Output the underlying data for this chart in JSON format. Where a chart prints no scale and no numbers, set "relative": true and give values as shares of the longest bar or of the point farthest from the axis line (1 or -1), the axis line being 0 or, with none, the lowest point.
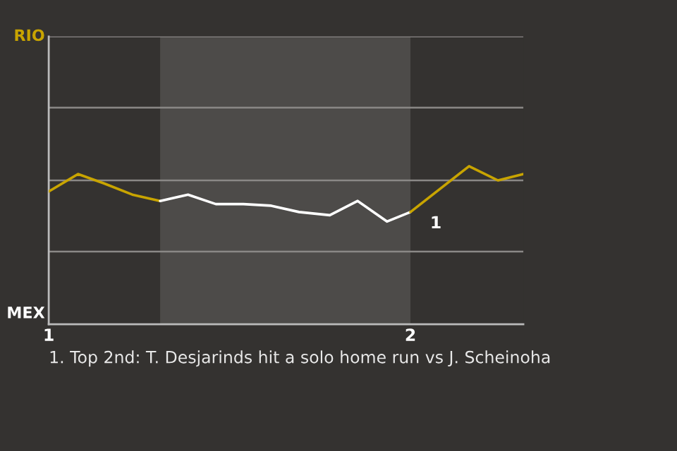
{
  "chart_data": {
    "type": "line",
    "relative": true,
    "series": [
      {
        "color": "#c8a400",
        "x": [
          1.0,
          1.081,
          1.154,
          1.231,
          1.308
        ],
        "values": [
          0.84,
          0.95,
          0.89,
          0.82,
          0.78
        ]
      },
      {
        "color": "#ffffff",
        "x": [
          1.308,
          1.385,
          1.462,
          1.538,
          1.615,
          1.692,
          1.777,
          1.854,
          1.935,
          2.0
        ],
        "values": [
          0.78,
          0.82,
          0.76,
          0.76,
          0.75,
          0.71,
          0.69,
          0.78,
          0.65,
          0.71
        ]
      },
      {
        "color": "#c8a400",
        "x": [
          2.0,
          2.162,
          2.242,
          2.312
        ],
        "values": [
          0.71,
          1,
          0.91,
          0.95
        ]
      }
    ],
    "xlim": [
      1,
      2.312
    ],
    "xticks": [
      1,
      2
    ],
    "bands": [
      {
        "axis": "x",
        "from": 1.308,
        "to": 2.0,
        "color": "#4d4b49"
      }
    ],
    "annotations": [
      "RIO",
      "MEX",
      {
        "text": "1",
        "x": 2.0,
        "y": 0.71
      },
      "1. Top 2nd: T. Desjarinds hit a solo home run vs J. Scheinoha"
    ],
    "ref_lines": [
      {
        "axis": "y",
        "value": 0.46,
        "color": "#8a8886"
      },
      {
        "axis": "y",
        "value": 0.91,
        "color": "#8a8886"
      },
      {
        "axis": "y",
        "value": 1.37,
        "color": "#8a8886"
      },
      {
        "axis": "y",
        "value": 1.82,
        "color": "#8a8886"
      }
    ],
    "legend": false,
    "marker": "none",
    "line_style": "solid"
  }
}
